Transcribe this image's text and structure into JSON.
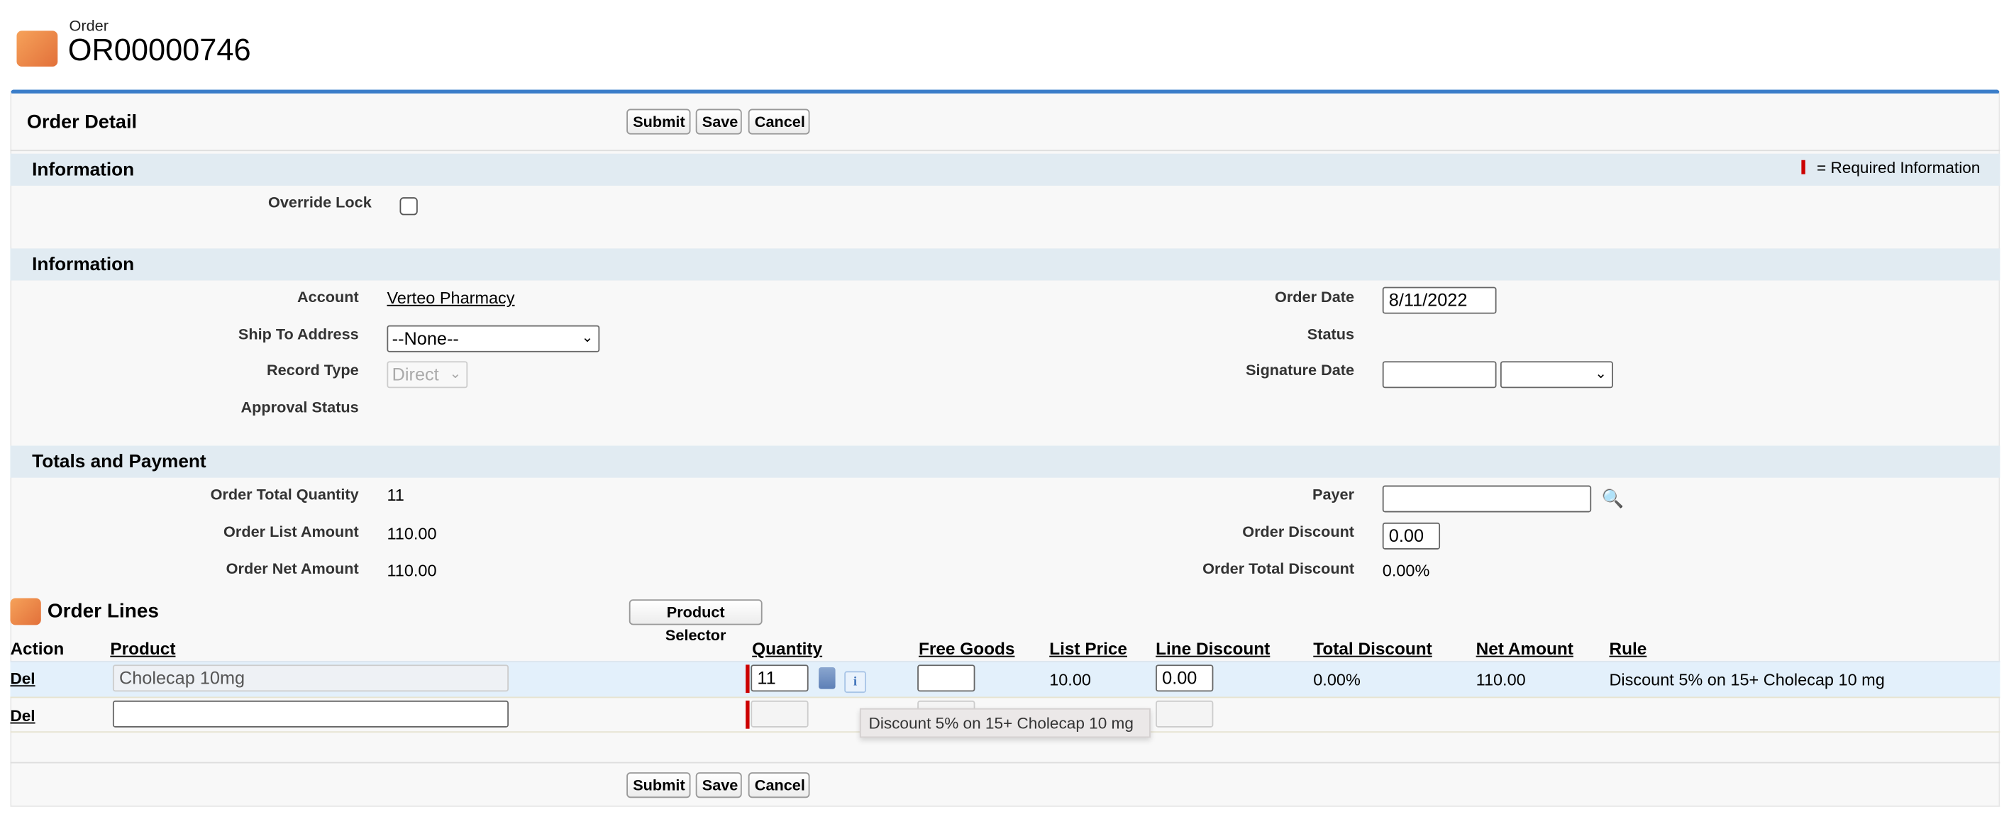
{
  "header": {
    "object_type": "Order",
    "title": "OR00000746",
    "icon": "order-cube-icon"
  },
  "detail": {
    "title": "Order Detail",
    "buttons": {
      "submit": "Submit",
      "save": "Save",
      "cancel": "Cancel"
    }
  },
  "sections": {
    "info1": {
      "title": "Information",
      "required_legend": "= Required Information",
      "override_lock_label": "Override Lock",
      "override_lock_checked": false
    },
    "info2": {
      "title": "Information",
      "account_label": "Account",
      "account_value": "Verteo Pharmacy",
      "ship_to_label": "Ship To Address",
      "ship_to_value": "--None--",
      "record_type_label": "Record Type",
      "record_type_value": "Direct",
      "approval_status_label": "Approval Status",
      "order_date_label": "Order Date",
      "order_date_value": "8/11/2022",
      "status_label": "Status",
      "signature_date_label": "Signature Date"
    },
    "totals": {
      "title": "Totals and Payment",
      "total_qty_label": "Order Total Quantity",
      "total_qty_value": "11",
      "list_amount_label": "Order List Amount",
      "list_amount_value": "110.00",
      "net_amount_label": "Order Net Amount",
      "net_amount_value": "110.00",
      "payer_label": "Payer",
      "payer_value": "",
      "order_discount_label": "Order Discount",
      "order_discount_value": "0.00",
      "total_discount_label": "Order Total Discount",
      "total_discount_value": "0.00%"
    }
  },
  "order_lines": {
    "title": "Order Lines",
    "product_selector": "Product Selector",
    "columns": [
      "Action",
      "Product",
      "Quantity",
      "Free Goods",
      "List Price",
      "Line Discount",
      "Total Discount",
      "Net Amount",
      "Rule"
    ],
    "rows": [
      {
        "action": "Del",
        "product": "Cholecap 10mg",
        "quantity": "11",
        "free_goods": "",
        "list_price": "10.00",
        "line_discount": "0.00",
        "total_discount": "0.00%",
        "net_amount": "110.00",
        "rule": "Discount 5% on 15+ Cholecap 10 mg"
      },
      {
        "action": "Del",
        "product": "",
        "quantity": "",
        "free_goods": "",
        "line_discount": ""
      }
    ],
    "tooltip": "Discount 5% on 15+ Cholecap 10 mg"
  },
  "colors": {
    "accent": "#3a7dc9",
    "section_bg": "#e1ebf2",
    "required": "#c00000",
    "selected_row": "#e3f0fb"
  }
}
